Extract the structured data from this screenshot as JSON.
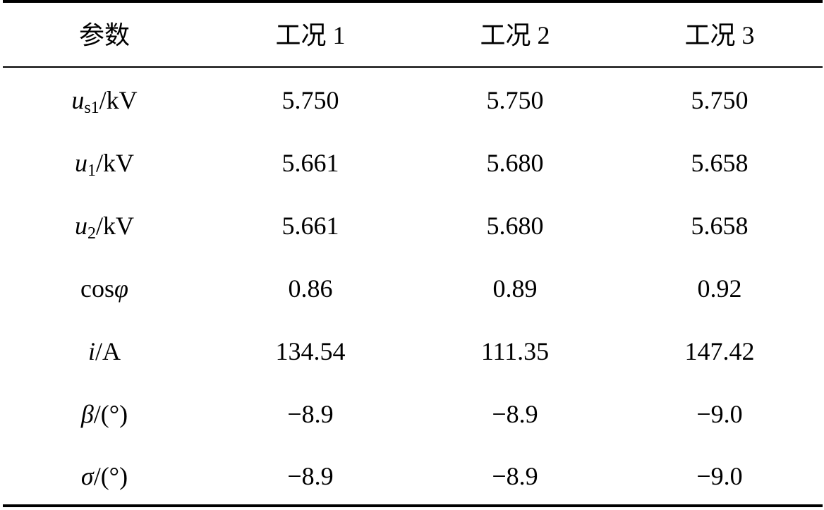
{
  "table": {
    "header": [
      "参数",
      "工况 1",
      "工况 2",
      "工况 3"
    ],
    "rows": [
      {
        "label": [
          {
            "text": "u",
            "style": "italic"
          },
          {
            "text": "s1",
            "style": "sub"
          },
          {
            "text": "/kV",
            "style": "normal"
          }
        ],
        "cells": [
          "5.750",
          "5.750",
          "5.750"
        ]
      },
      {
        "label": [
          {
            "text": "u",
            "style": "italic"
          },
          {
            "text": "1",
            "style": "sub"
          },
          {
            "text": "/kV",
            "style": "normal"
          }
        ],
        "cells": [
          "5.661",
          "5.680",
          "5.658"
        ]
      },
      {
        "label": [
          {
            "text": "u",
            "style": "italic"
          },
          {
            "text": "2",
            "style": "sub"
          },
          {
            "text": "/kV",
            "style": "normal"
          }
        ],
        "cells": [
          "5.661",
          "5.680",
          "5.658"
        ]
      },
      {
        "label": [
          {
            "text": "cos",
            "style": "normal"
          },
          {
            "text": "φ",
            "style": "italic"
          }
        ],
        "cells": [
          "0.86",
          "0.89",
          "0.92"
        ]
      },
      {
        "label": [
          {
            "text": "i",
            "style": "italic"
          },
          {
            "text": "/A",
            "style": "normal"
          }
        ],
        "cells": [
          "134.54",
          "111.35",
          "147.42"
        ]
      },
      {
        "label": [
          {
            "text": "β",
            "style": "italic"
          },
          {
            "text": "/(°)",
            "style": "normal"
          }
        ],
        "cells": [
          "−8.9",
          "−8.9",
          "−9.0"
        ]
      },
      {
        "label": [
          {
            "text": "σ",
            "style": "italic"
          },
          {
            "text": "/(°)",
            "style": "normal"
          }
        ],
        "cells": [
          "−8.9",
          "−8.9",
          "−9.0"
        ]
      }
    ]
  }
}
